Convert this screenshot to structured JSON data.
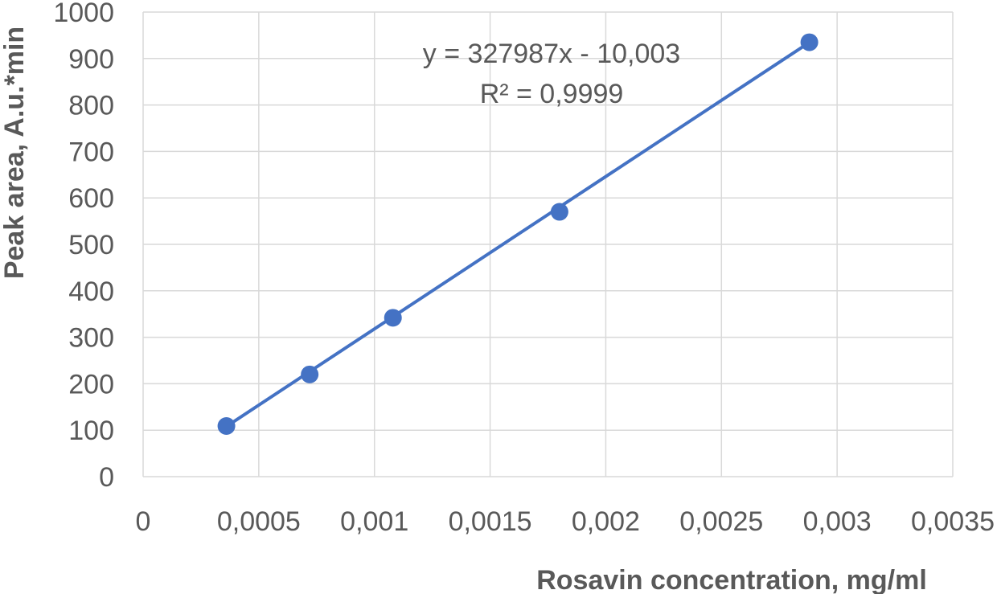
{
  "chart_data": {
    "type": "scatter",
    "xlabel": "Rosavin concentration, mg/ml",
    "ylabel": "Peak area, A.u.*min",
    "xlim": [
      0,
      0.0035
    ],
    "ylim": [
      0,
      1000
    ],
    "x_ticks": [
      0,
      0.0005,
      0.001,
      0.0015,
      0.002,
      0.0025,
      0.003,
      0.0035
    ],
    "x_tick_labels": [
      "0",
      "0,0005",
      "0,001",
      "0,0015",
      "0,002",
      "0,0025",
      "0,003",
      "0,0035"
    ],
    "y_ticks": [
      0,
      100,
      200,
      300,
      400,
      500,
      600,
      700,
      800,
      900,
      1000
    ],
    "y_tick_labels": [
      "0",
      "100",
      "200",
      "300",
      "400",
      "500",
      "600",
      "700",
      "800",
      "900",
      "1000"
    ],
    "grid": true,
    "legend": "none",
    "series": [
      {
        "x": [
          0.00036,
          0.00072,
          0.00108,
          0.0018,
          0.00288
        ],
        "y": [
          109,
          220,
          342,
          570,
          935
        ],
        "color": "#4472c4",
        "marker": "circle"
      }
    ],
    "trendline": {
      "slope": 327987,
      "intercept": -10.003,
      "x_range": [
        0.00036,
        0.00288
      ],
      "color": "#4472c4"
    },
    "annotations": {
      "equation": "y = 327987x - 10,003",
      "r_squared": "R² = 0,9999"
    },
    "colors": {
      "series": "#4472c4",
      "grid": "#d9d9d9",
      "text": "#595959"
    }
  }
}
